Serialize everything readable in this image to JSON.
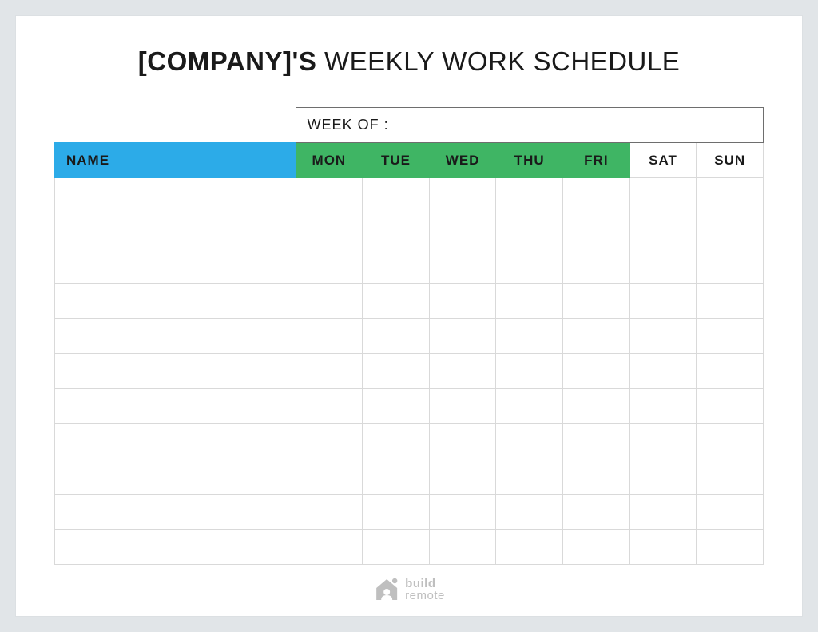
{
  "title_company": "[COMPANY]'S",
  "title_rest": " WEEKLY WORK SCHEDULE",
  "week_of_label": "WEEK OF :",
  "columns": {
    "name": {
      "label": "NAME",
      "bg": "#2cabe8",
      "fg": "#1a1a1a"
    },
    "days": [
      {
        "key": "mon",
        "label": "MON",
        "bg": "#3fb564",
        "fg": "#1a1a1a"
      },
      {
        "key": "tue",
        "label": "TUE",
        "bg": "#3fb564",
        "fg": "#1a1a1a"
      },
      {
        "key": "wed",
        "label": "WED",
        "bg": "#3fb564",
        "fg": "#1a1a1a"
      },
      {
        "key": "thu",
        "label": "THU",
        "bg": "#3fb564",
        "fg": "#1a1a1a"
      },
      {
        "key": "fri",
        "label": "FRI",
        "bg": "#3fb564",
        "fg": "#1a1a1a"
      },
      {
        "key": "sat",
        "label": "SAT",
        "bg": "#ffffff",
        "fg": "#1a1a1a"
      },
      {
        "key": "sun",
        "label": "SUN",
        "bg": "#ffffff",
        "fg": "#1a1a1a"
      }
    ]
  },
  "row_count": 11,
  "table_border_color": "#d9d9d9",
  "outer_border_color": "#6e6e6e",
  "name_col_width_pct": 34,
  "day_col_width_pct": 9.43,
  "footer": {
    "line1": "build",
    "line2": "remote",
    "color": "#bfbfbf"
  },
  "page_bg": "#e1e5e8",
  "card_bg": "#ffffff"
}
